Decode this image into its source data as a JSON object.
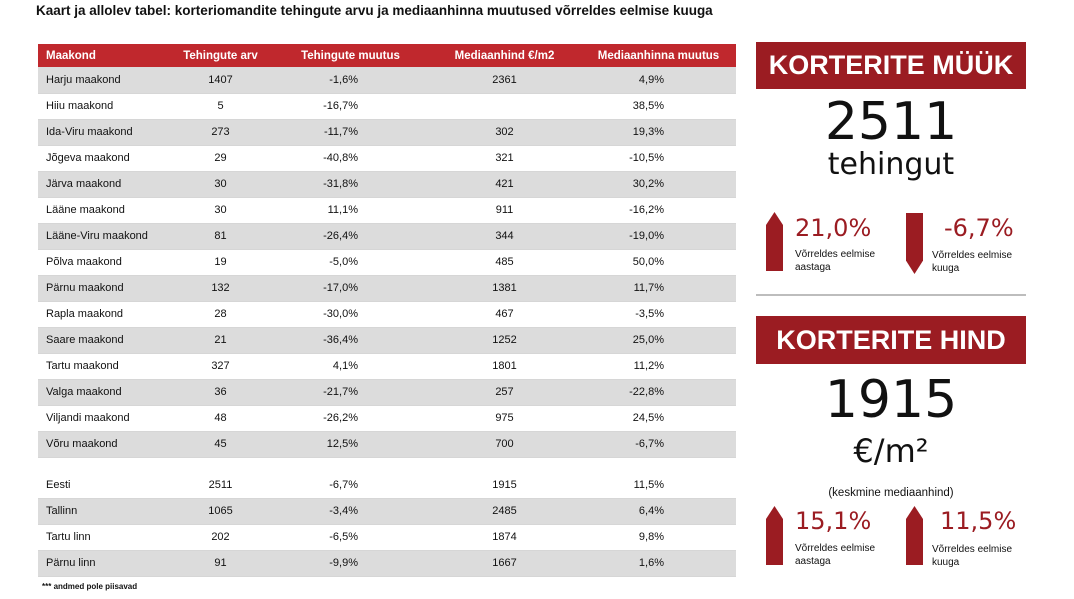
{
  "title": "Kaart ja allolev tabel: korteriomandite tehingute arvu ja mediaanhinna muutused võrreldes eelmise kuuga",
  "table": {
    "headers": [
      "Maakond",
      "Tehingute arv",
      "Tehingute muutus",
      "Mediaanhind €/m2",
      "Mediaanhinna muutus"
    ],
    "rows": [
      [
        "Harju maakond",
        "1407",
        "-1,6%",
        "2361",
        "4,9%"
      ],
      [
        "Hiiu maakond",
        "5",
        "-16,7%",
        "",
        "38,5%"
      ],
      [
        "Ida-Viru maakond",
        "273",
        "-11,7%",
        "302",
        "19,3%"
      ],
      [
        "Jõgeva maakond",
        "29",
        "-40,8%",
        "321",
        "-10,5%"
      ],
      [
        "Järva maakond",
        "30",
        "-31,8%",
        "421",
        "30,2%"
      ],
      [
        "Lääne maakond",
        "30",
        "11,1%",
        "911",
        "-16,2%"
      ],
      [
        "Lääne-Viru maakond",
        "81",
        "-26,4%",
        "344",
        "-19,0%"
      ],
      [
        "Põlva maakond",
        "19",
        "-5,0%",
        "485",
        "50,0%"
      ],
      [
        "Pärnu maakond",
        "132",
        "-17,0%",
        "1381",
        "11,7%"
      ],
      [
        "Rapla maakond",
        "28",
        "-30,0%",
        "467",
        "-3,5%"
      ],
      [
        "Saare maakond",
        "21",
        "-36,4%",
        "1252",
        "25,0%"
      ],
      [
        "Tartu maakond",
        "327",
        "4,1%",
        "1801",
        "11,2%"
      ],
      [
        "Valga maakond",
        "36",
        "-21,7%",
        "257",
        "-22,8%"
      ],
      [
        "Viljandi maakond",
        "48",
        "-26,2%",
        "975",
        "24,5%"
      ],
      [
        "Võru maakond",
        "45",
        "12,5%",
        "700",
        "-6,7%"
      ]
    ],
    "summary_rows": [
      [
        "Eesti",
        "2511",
        "-6,7%",
        "1915",
        "11,5%"
      ],
      [
        "Tallinn",
        "1065",
        "-3,4%",
        "2485",
        "6,4%"
      ],
      [
        "Tartu linn",
        "202",
        "-6,5%",
        "1874",
        "9,8%"
      ],
      [
        "Pärnu linn",
        "91",
        "-9,9%",
        "1667",
        "1,6%"
      ]
    ],
    "footnote": "*** andmed pole piisavad"
  },
  "sales": {
    "banner": "KORTERITE MÜÜK",
    "number": "2511",
    "unit": "tehingut",
    "yoy_value": "21,0%",
    "yoy_caption_1": "Võrreldes eelmise",
    "yoy_caption_2": "aastaga",
    "mom_value": "-6,7%",
    "mom_caption_1": "Võrreldes eelmise",
    "mom_caption_2": "kuuga"
  },
  "price": {
    "banner": "KORTERITE HIND",
    "number": "1915",
    "unit": "€/m²",
    "note": "(keskmine mediaanhind)",
    "yoy_value": "15,1%",
    "yoy_caption_1": "Võrreldes eelmise",
    "yoy_caption_2": "aastaga",
    "mom_value": "11,5%",
    "mom_caption_1": "Võrreldes eelmise",
    "mom_caption_2": "kuuga"
  },
  "colors": {
    "header_red": "#c0282d",
    "dark_red": "#9b1c22",
    "row_shade": "#dcdcdc"
  }
}
